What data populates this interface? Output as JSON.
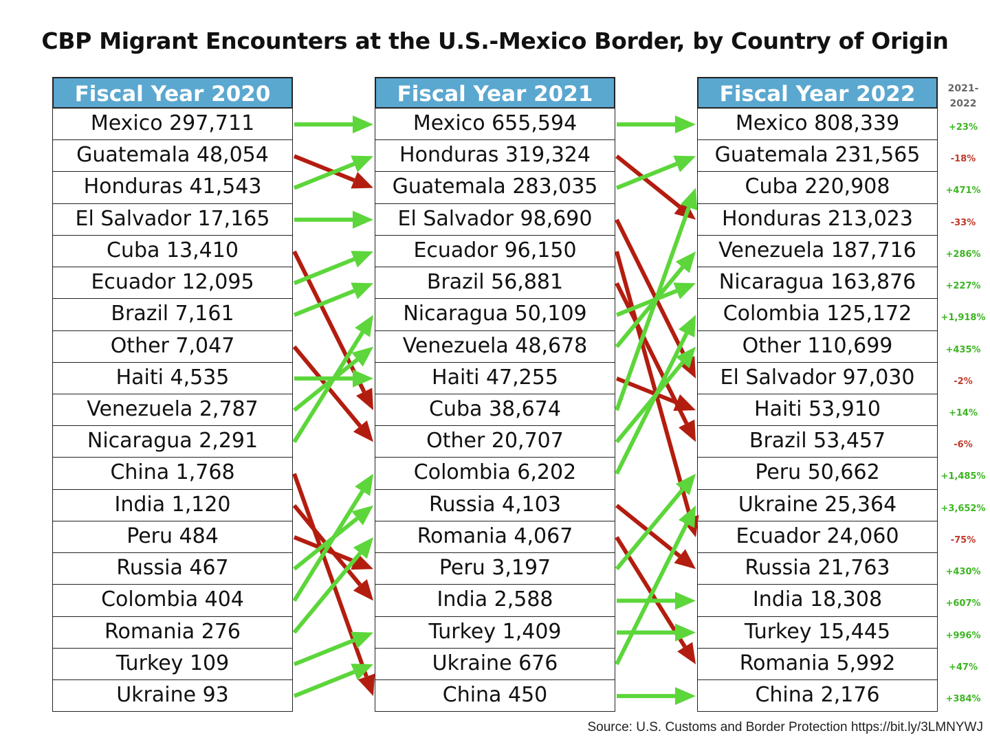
{
  "title": "CBP Migrant Encounters at the U.S.-Mexico Border, by Country of Origin",
  "source": "Source: U.S. Customs and Border Protection https://bit.ly/3LMNYWJ",
  "change_header": "2021-2022",
  "colors": {
    "header": "#5aa7cf",
    "up": "#5cd63a",
    "down": "#b31d0f"
  },
  "chart_data": {
    "type": "table",
    "columns": [
      {
        "header": "Fiscal Year 2020",
        "rows": [
          {
            "country": "Mexico",
            "value": 297711,
            "label": "Mexico 297,711"
          },
          {
            "country": "Guatemala",
            "value": 48054,
            "label": "Guatemala 48,054"
          },
          {
            "country": "Honduras",
            "value": 41543,
            "label": "Honduras 41,543"
          },
          {
            "country": "El Salvador",
            "value": 17165,
            "label": "El Salvador 17,165"
          },
          {
            "country": "Cuba",
            "value": 13410,
            "label": "Cuba 13,410"
          },
          {
            "country": "Ecuador",
            "value": 12095,
            "label": "Ecuador 12,095"
          },
          {
            "country": "Brazil",
            "value": 7161,
            "label": "Brazil 7,161"
          },
          {
            "country": "Other",
            "value": 7047,
            "label": "Other 7,047"
          },
          {
            "country": "Haiti",
            "value": 4535,
            "label": "Haiti 4,535"
          },
          {
            "country": "Venezuela",
            "value": 2787,
            "label": "Venezuela 2,787"
          },
          {
            "country": "Nicaragua",
            "value": 2291,
            "label": "Nicaragua 2,291"
          },
          {
            "country": "China",
            "value": 1768,
            "label": "China 1,768"
          },
          {
            "country": "India",
            "value": 1120,
            "label": "India 1,120"
          },
          {
            "country": "Peru",
            "value": 484,
            "label": "Peru 484"
          },
          {
            "country": "Russia",
            "value": 467,
            "label": "Russia 467"
          },
          {
            "country": "Colombia",
            "value": 404,
            "label": "Colombia 404"
          },
          {
            "country": "Romania",
            "value": 276,
            "label": "Romania 276"
          },
          {
            "country": "Turkey",
            "value": 109,
            "label": "Turkey 109"
          },
          {
            "country": "Ukraine",
            "value": 93,
            "label": "Ukraine 93"
          }
        ]
      },
      {
        "header": "Fiscal Year 2021",
        "rows": [
          {
            "country": "Mexico",
            "value": 655594,
            "label": "Mexico 655,594"
          },
          {
            "country": "Honduras",
            "value": 319324,
            "label": "Honduras 319,324"
          },
          {
            "country": "Guatemala",
            "value": 283035,
            "label": "Guatemala 283,035"
          },
          {
            "country": "El Salvador",
            "value": 98690,
            "label": "El Salvador 98,690"
          },
          {
            "country": "Ecuador",
            "value": 96150,
            "label": "Ecuador 96,150"
          },
          {
            "country": "Brazil",
            "value": 56881,
            "label": "Brazil 56,881"
          },
          {
            "country": "Nicaragua",
            "value": 50109,
            "label": "Nicaragua 50,109"
          },
          {
            "country": "Venezuela",
            "value": 48678,
            "label": "Venezuela 48,678"
          },
          {
            "country": "Haiti",
            "value": 47255,
            "label": "Haiti 47,255"
          },
          {
            "country": "Cuba",
            "value": 38674,
            "label": "Cuba 38,674"
          },
          {
            "country": "Other",
            "value": 20707,
            "label": "Other 20,707"
          },
          {
            "country": "Colombia",
            "value": 6202,
            "label": "Colombia 6,202"
          },
          {
            "country": "Russia",
            "value": 4103,
            "label": "Russia 4,103"
          },
          {
            "country": "Romania",
            "value": 4067,
            "label": "Romania 4,067"
          },
          {
            "country": "Peru",
            "value": 3197,
            "label": "Peru 3,197"
          },
          {
            "country": "India",
            "value": 2588,
            "label": "India 2,588"
          },
          {
            "country": "Turkey",
            "value": 1409,
            "label": "Turkey 1,409"
          },
          {
            "country": "Ukraine",
            "value": 676,
            "label": "Ukraine 676"
          },
          {
            "country": "China",
            "value": 450,
            "label": "China 450"
          }
        ]
      },
      {
        "header": "Fiscal Year 2022",
        "rows": [
          {
            "country": "Mexico",
            "value": 808339,
            "label": "Mexico 808,339",
            "change": "+23%"
          },
          {
            "country": "Guatemala",
            "value": 231565,
            "label": "Guatemala 231,565",
            "change": "-18%"
          },
          {
            "country": "Cuba",
            "value": 220908,
            "label": "Cuba 220,908",
            "change": "+471%"
          },
          {
            "country": "Honduras",
            "value": 213023,
            "label": "Honduras 213,023",
            "change": "-33%"
          },
          {
            "country": "Venezuela",
            "value": 187716,
            "label": "Venezuela 187,716",
            "change": "+286%"
          },
          {
            "country": "Nicaragua",
            "value": 163876,
            "label": "Nicaragua 163,876",
            "change": "+227%"
          },
          {
            "country": "Colombia",
            "value": 125172,
            "label": "Colombia 125,172",
            "change": "+1,918%"
          },
          {
            "country": "Other",
            "value": 110699,
            "label": "Other 110,699",
            "change": "+435%"
          },
          {
            "country": "El Salvador",
            "value": 97030,
            "label": "El Salvador 97,030",
            "change": "-2%"
          },
          {
            "country": "Haiti",
            "value": 53910,
            "label": "Haiti 53,910",
            "change": "+14%"
          },
          {
            "country": "Brazil",
            "value": 53457,
            "label": "Brazil 53,457",
            "change": "-6%"
          },
          {
            "country": "Peru",
            "value": 50662,
            "label": "Peru 50,662",
            "change": "+1,485%"
          },
          {
            "country": "Ukraine",
            "value": 25364,
            "label": "Ukraine 25,364",
            "change": "+3,652%"
          },
          {
            "country": "Ecuador",
            "value": 24060,
            "label": "Ecuador 24,060",
            "change": "-75%"
          },
          {
            "country": "Russia",
            "value": 21763,
            "label": "Russia 21,763",
            "change": "+430%"
          },
          {
            "country": "India",
            "value": 18308,
            "label": "India 18,308",
            "change": "+607%"
          },
          {
            "country": "Turkey",
            "value": 15445,
            "label": "Turkey 15,445",
            "change": "+996%"
          },
          {
            "country": "Romania",
            "value": 5992,
            "label": "Romania 5,992",
            "change": "+47%"
          },
          {
            "country": "China",
            "value": 2176,
            "label": "China 2,176",
            "change": "+384%"
          }
        ]
      }
    ]
  }
}
